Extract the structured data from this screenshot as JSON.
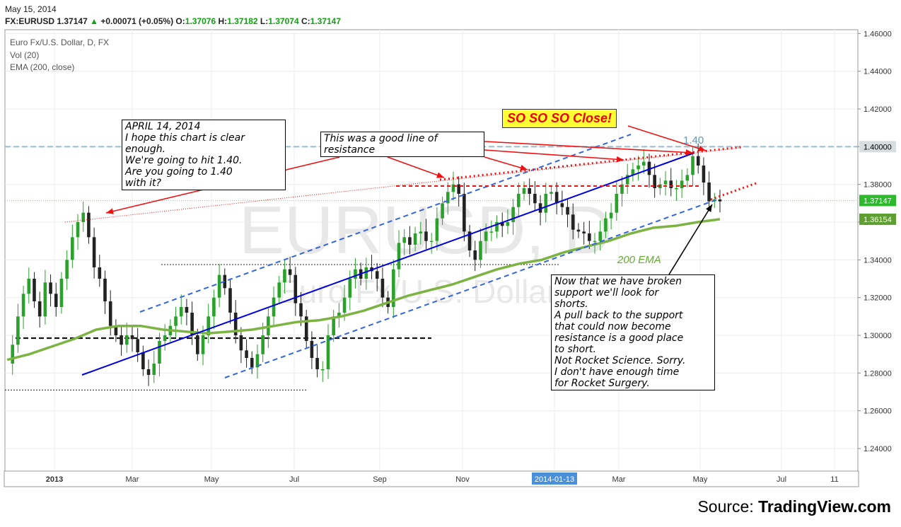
{
  "header": {
    "date": "May 15, 2014",
    "symbol": "FX:EURUSD",
    "last": "1.37147",
    "change_arrow": "▲",
    "change": "+0.00071 (+0.05%)",
    "o_label": "O:",
    "o": "1.37076",
    "h_label": "H:",
    "h": "1.37182",
    "l_label": "L:",
    "l": "1.37074",
    "c_label": "C:",
    "c": "1.37147"
  },
  "legend": {
    "series": "Euro Fx/U.S. Dollar, D, FX",
    "vol": "Vol (20)",
    "ema": "EMA (200, close)"
  },
  "watermark": {
    "line1": "EURUSD, D",
    "line2": "Euro Fx/U.S. Dollar"
  },
  "colors": {
    "up": "#2aa12a",
    "down": "#222222",
    "ema": "#7cb342",
    "channel": "#0000dd",
    "channel_dash": "#3366dd",
    "resistance": "#ee1111",
    "level_140": "#99bbcc"
  },
  "chart_data": {
    "type": "line",
    "title": "Euro Fx/U.S. Dollar, D, FX",
    "xlabel": "",
    "ylabel": "",
    "ylim": [
      1.228,
      1.462
    ],
    "x_ticks": [
      "2013",
      "Mar",
      "May",
      "Jul",
      "Sep",
      "Nov",
      "2014-01-13",
      "Mar",
      "May",
      "Jul",
      "11"
    ],
    "y_ticks": [
      "1.46000",
      "1.44000",
      "1.42000",
      "1.40000",
      "1.38000",
      "1.36000",
      "1.34000",
      "1.32000",
      "1.30000",
      "1.28000",
      "1.26000",
      "1.24000"
    ],
    "price_labels": [
      {
        "label": "1.40000",
        "value": 1.4,
        "color": "#d8dde0",
        "text_color": "#000000"
      },
      {
        "label": "1.37147",
        "value": 1.37147,
        "color": "#2eb82e",
        "text_color": "#ffffff"
      },
      {
        "label": "1.36154",
        "value": 1.36154,
        "color": "#5f9e33",
        "text_color": "#ffffff"
      }
    ],
    "series": [
      {
        "name": "EURUSD",
        "values": [
          1.285,
          1.295,
          1.31,
          1.322,
          1.33,
          1.318,
          1.31,
          1.328,
          1.322,
          1.315,
          1.33,
          1.34,
          1.352,
          1.36,
          1.365,
          1.352,
          1.336,
          1.33,
          1.318,
          1.305,
          1.3,
          1.295,
          1.3,
          1.298,
          1.291,
          1.282,
          1.279,
          1.285,
          1.297,
          1.3,
          1.305,
          1.31,
          1.315,
          1.312,
          1.3,
          1.29,
          1.3,
          1.31,
          1.32,
          1.332,
          1.325,
          1.312,
          1.3,
          1.292,
          1.288,
          1.283,
          1.29,
          1.3,
          1.31,
          1.32,
          1.328,
          1.335,
          1.332,
          1.317,
          1.31,
          1.297,
          1.288,
          1.282,
          1.282,
          1.3,
          1.31,
          1.312,
          1.32,
          1.33,
          1.335,
          1.33,
          1.336,
          1.334,
          1.33,
          1.32,
          1.315,
          1.335,
          1.349,
          1.352,
          1.348,
          1.354,
          1.355,
          1.35,
          1.35,
          1.362,
          1.37,
          1.376,
          1.38,
          1.375,
          1.355,
          1.345,
          1.34,
          1.35,
          1.355,
          1.355,
          1.36,
          1.358,
          1.36,
          1.368,
          1.375,
          1.378,
          1.375,
          1.37,
          1.365,
          1.375,
          1.376,
          1.37,
          1.368,
          1.364,
          1.356,
          1.355,
          1.354,
          1.35,
          1.35,
          1.355,
          1.362,
          1.365,
          1.375,
          1.38,
          1.385,
          1.388,
          1.39,
          1.392,
          1.385,
          1.378,
          1.38,
          1.382,
          1.378,
          1.378,
          1.382,
          1.385,
          1.395,
          1.39,
          1.381,
          1.371,
          1.372,
          1.371
        ]
      },
      {
        "name": "EMA (200, close)",
        "values": [
          1.287,
          1.29,
          1.294,
          1.298,
          1.303,
          1.305,
          1.305,
          1.303,
          1.302,
          1.301,
          1.302,
          1.303,
          1.305,
          1.307,
          1.308,
          1.31,
          1.313,
          1.317,
          1.321,
          1.324,
          1.327,
          1.331,
          1.335,
          1.338,
          1.34,
          1.344,
          1.347,
          1.35,
          1.354,
          1.357,
          1.358,
          1.36,
          1.36154
        ]
      }
    ],
    "annotations": [
      {
        "text": "1.40"
      },
      {
        "text": "200 EMA"
      }
    ]
  },
  "notes": {
    "april": "APRIL 14, 2014\nI hope this chart is clear\nenough.\nWe're going to hit 1.40.\nAre you going to 1.40\nwith it?",
    "resistance": "This was a good line of\nresistance",
    "close": "SO SO SO Close!",
    "broken": "Now that we have broken\nsupport we'll look for\nshorts.\nA pull back to the support\nthat could now become\nresistance is a good place\nto short.\nNot Rocket Science. Sorry.\nI don't have enough time\nfor Rocket Surgery."
  },
  "source": {
    "prefix": "Source: ",
    "brand": "TradingView.com"
  }
}
